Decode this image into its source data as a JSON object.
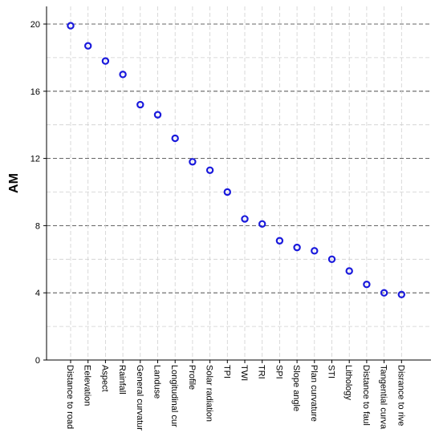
{
  "chart_data": {
    "type": "scatter",
    "title": "",
    "xlabel": "",
    "ylabel": "AM",
    "ylim": [
      0,
      21
    ],
    "yticks": [
      0,
      4,
      8,
      12,
      16,
      20
    ],
    "grid": true,
    "marker": "open-circle",
    "marker_color": "#1a1adc",
    "categories": [
      "Distance to road",
      "Eelevation",
      "Aspect",
      "Rainfall",
      "General curvatur",
      "Landuse",
      "Longitudinal cur",
      "Profile",
      "Solar radiation",
      "TPI",
      "TWI",
      "TRI",
      "SPI",
      "Slope angle",
      "Plan curvature",
      "STI",
      "Lithology",
      "Distance to faul",
      "Tangential curva",
      "Disrance to rive"
    ],
    "values": [
      19.9,
      18.7,
      17.8,
      17.0,
      15.2,
      14.6,
      13.2,
      11.8,
      11.3,
      10.0,
      8.4,
      8.1,
      7.1,
      6.7,
      6.5,
      6.0,
      5.3,
      4.5,
      4.0,
      3.9
    ]
  }
}
